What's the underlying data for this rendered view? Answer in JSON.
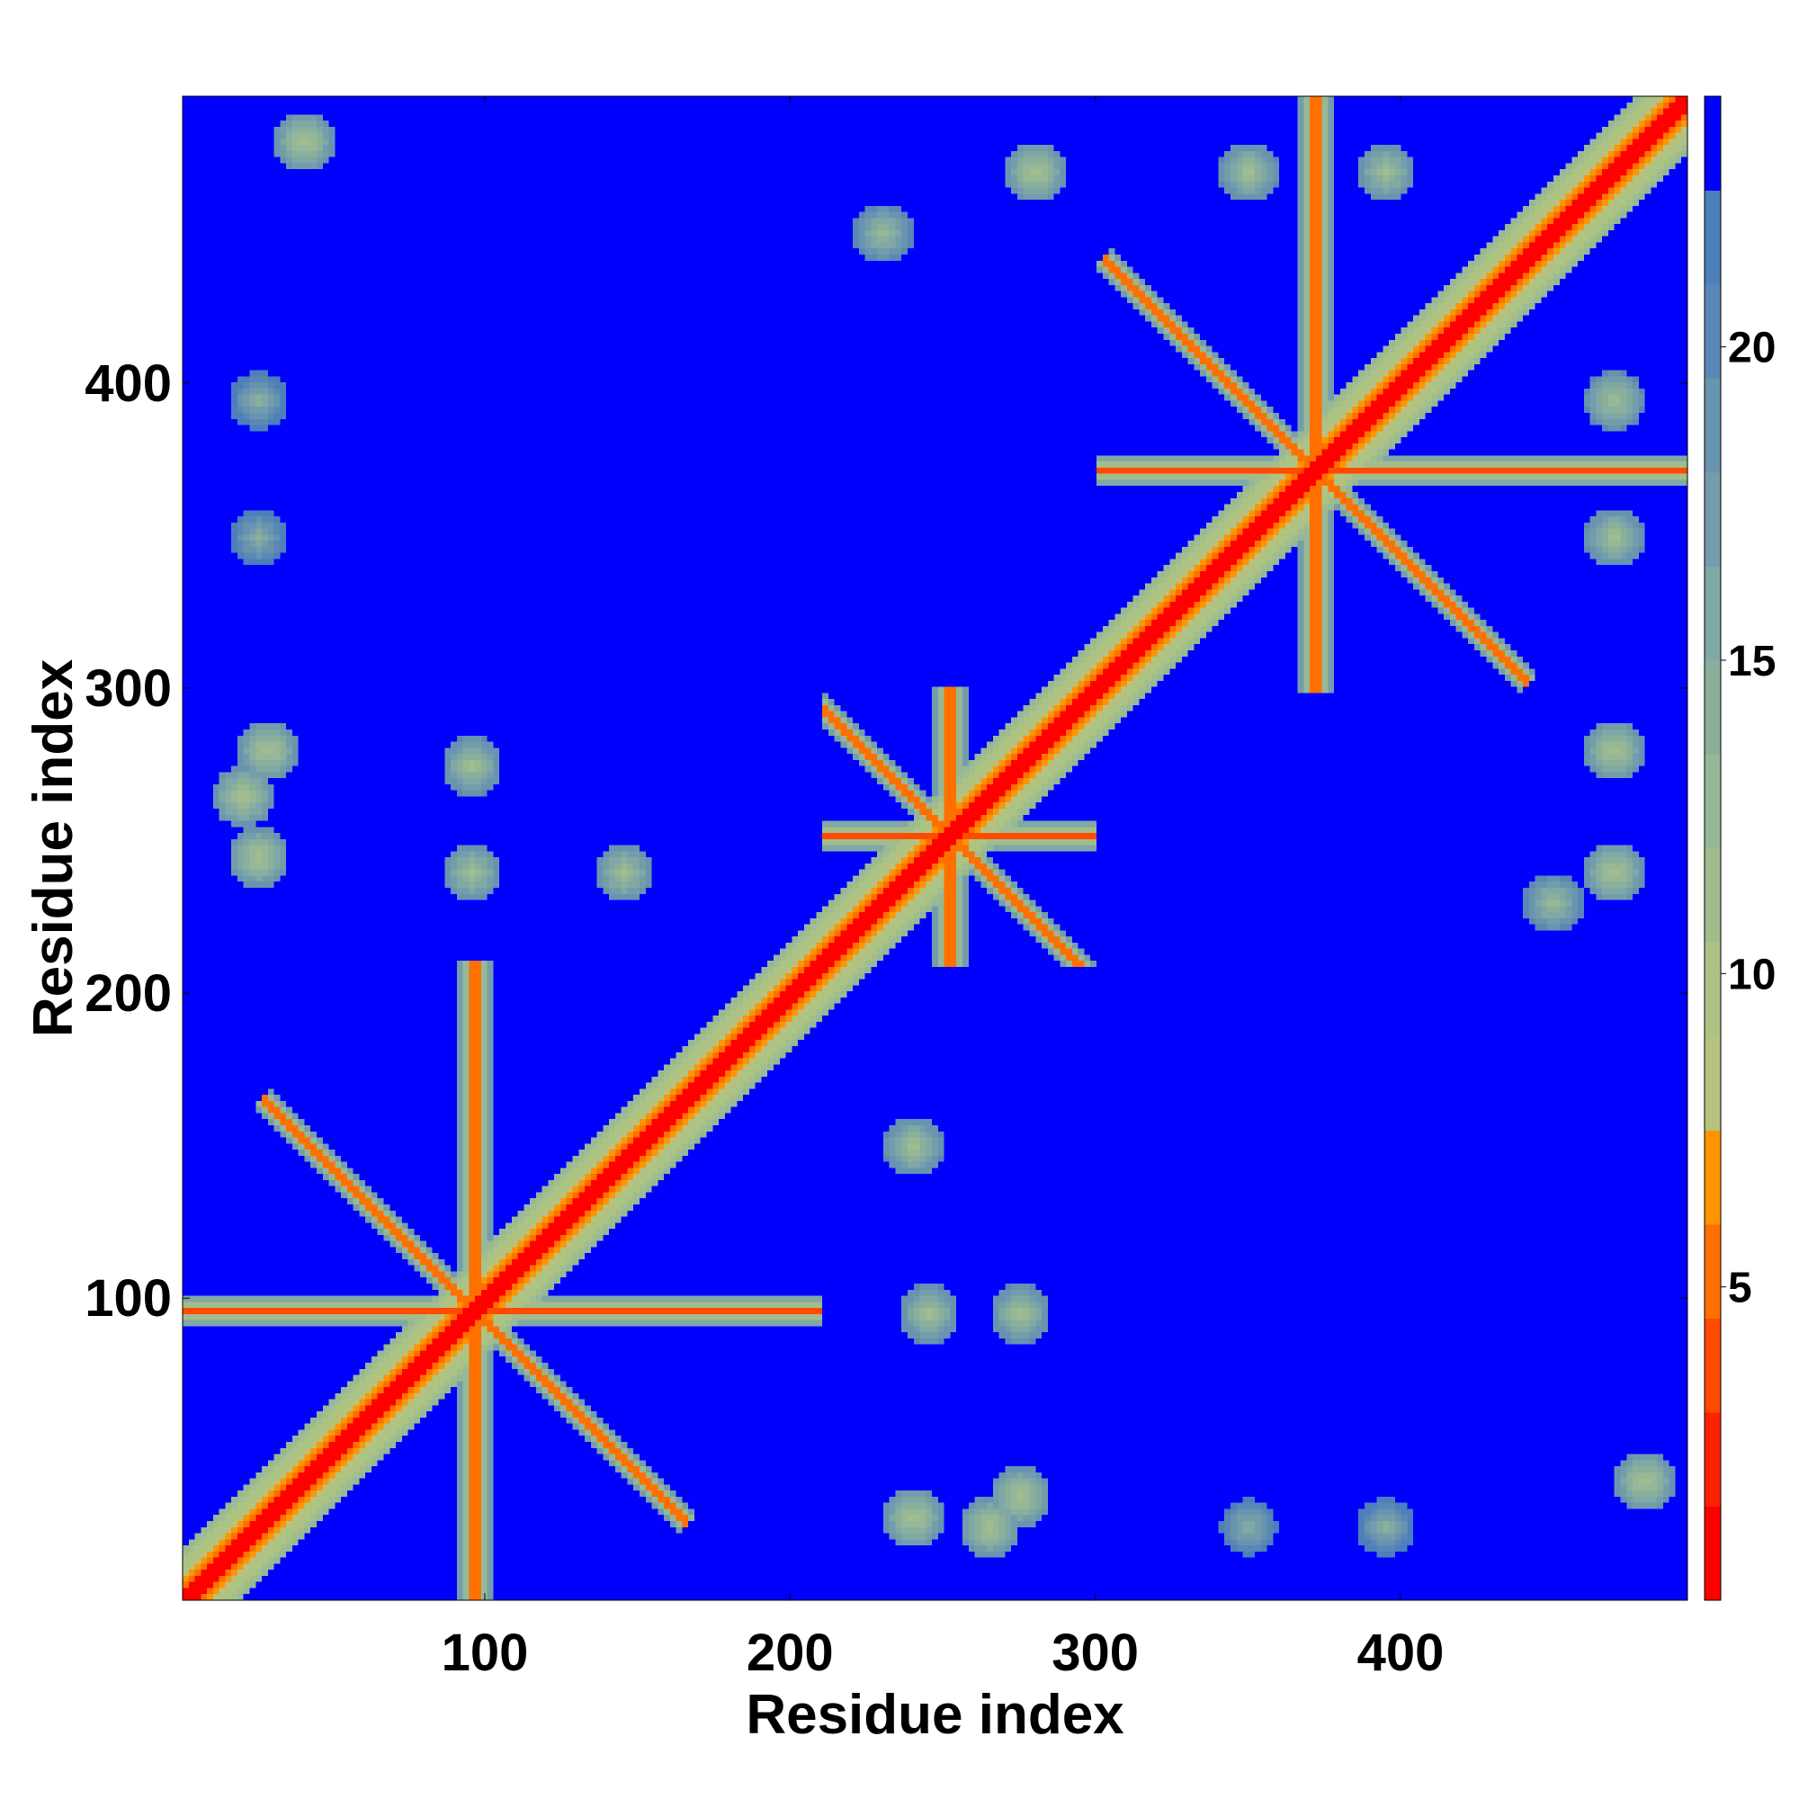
{
  "chart_data": {
    "type": "heatmap",
    "title": "",
    "xlabel": "Residue index",
    "ylabel": "Residue index",
    "xlim": [
      1,
      494
    ],
    "ylim": [
      1,
      494
    ],
    "x_ticks": [
      100,
      200,
      300,
      400
    ],
    "y_ticks": [
      100,
      200,
      300,
      400
    ],
    "grid": false,
    "legend": "none",
    "symmetric": true,
    "colorbar": {
      "position": "right",
      "range": [
        0,
        24
      ],
      "ticks": [
        5,
        10,
        15,
        20
      ],
      "levels": [
        {
          "max": 1.5,
          "color": "#ff0000"
        },
        {
          "max": 3,
          "color": "#ff2200"
        },
        {
          "max": 4.5,
          "color": "#ff4a00"
        },
        {
          "max": 6,
          "color": "#ff7000"
        },
        {
          "max": 7.5,
          "color": "#ff9500"
        },
        {
          "max": 9,
          "color": "#b7c27e"
        },
        {
          "max": 10.5,
          "color": "#adc384"
        },
        {
          "max": 12,
          "color": "#a1bd8e"
        },
        {
          "max": 13.5,
          "color": "#96b896"
        },
        {
          "max": 15,
          "color": "#8ab09c"
        },
        {
          "max": 16.5,
          "color": "#80a8a4"
        },
        {
          "max": 18,
          "color": "#749dab"
        },
        {
          "max": 19.5,
          "color": "#6894b0"
        },
        {
          "max": 21,
          "color": "#5b87b5"
        },
        {
          "max": 22.5,
          "color": "#4d7fba"
        },
        {
          "max": 24,
          "color": "#0000ff"
        }
      ]
    },
    "diagonal": {
      "value": 2
    },
    "domains": [
      {
        "start": 1,
        "end": 210,
        "center": 96
      },
      {
        "start": 210,
        "end": 300,
        "center": 252
      },
      {
        "start": 300,
        "end": 494,
        "center": 372
      }
    ],
    "off_diagonal_contacts": [
      {
        "x": 240,
        "y": 28,
        "value": 10
      },
      {
        "x": 265,
        "y": 25,
        "value": 10
      },
      {
        "x": 275,
        "y": 35,
        "value": 10
      },
      {
        "x": 95,
        "y": 240,
        "value": 11
      },
      {
        "x": 95,
        "y": 275,
        "value": 11
      },
      {
        "x": 145,
        "y": 240,
        "value": 11
      },
      {
        "x": 25,
        "y": 245,
        "value": 10
      },
      {
        "x": 28,
        "y": 280,
        "value": 10
      },
      {
        "x": 20,
        "y": 265,
        "value": 10
      },
      {
        "x": 240,
        "y": 150,
        "value": 11
      },
      {
        "x": 245,
        "y": 95,
        "value": 11
      },
      {
        "x": 275,
        "y": 95,
        "value": 11
      },
      {
        "x": 350,
        "y": 470,
        "value": 11
      },
      {
        "x": 395,
        "y": 470,
        "value": 11
      },
      {
        "x": 470,
        "y": 395,
        "value": 11
      },
      {
        "x": 470,
        "y": 350,
        "value": 11
      },
      {
        "x": 470,
        "y": 280,
        "value": 10
      },
      {
        "x": 470,
        "y": 240,
        "value": 10
      },
      {
        "x": 280,
        "y": 470,
        "value": 10
      },
      {
        "x": 40,
        "y": 480,
        "value": 10
      },
      {
        "x": 480,
        "y": 40,
        "value": 10
      },
      {
        "x": 450,
        "y": 230,
        "value": 12
      },
      {
        "x": 230,
        "y": 450,
        "value": 12
      },
      {
        "x": 350,
        "y": 25,
        "value": 14
      },
      {
        "x": 395,
        "y": 25,
        "value": 14
      },
      {
        "x": 25,
        "y": 350,
        "value": 14
      },
      {
        "x": 25,
        "y": 395,
        "value": 14
      }
    ]
  }
}
